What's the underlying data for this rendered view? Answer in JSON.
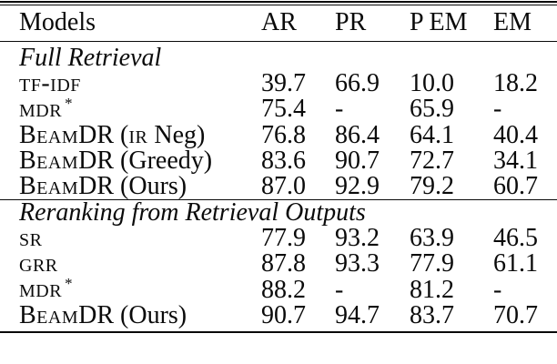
{
  "table": {
    "columns": [
      "Models",
      "AR",
      "PR",
      "P EM",
      "EM"
    ],
    "sections": [
      {
        "header": "Full Retrieval",
        "rows": [
          {
            "model": [
              [
                "tf-idf",
                "sc"
              ]
            ],
            "values": [
              "39.7",
              "66.9",
              "10.0",
              "18.2"
            ]
          },
          {
            "model": [
              [
                "mdr",
                "sc"
              ],
              [
                "*",
                "sup"
              ]
            ],
            "values": [
              "75.4",
              "-",
              "65.9",
              "-"
            ]
          },
          {
            "model": [
              [
                "Beam",
                "sc"
              ],
              [
                "DR (",
                ""
              ],
              [
                "ir",
                "sc"
              ],
              [
                " Neg)",
                ""
              ]
            ],
            "values": [
              "76.8",
              "86.4",
              "64.1",
              "40.4"
            ]
          },
          {
            "model": [
              [
                "Beam",
                "sc"
              ],
              [
                "DR (Greedy)",
                ""
              ]
            ],
            "values": [
              "83.6",
              "90.7",
              "72.7",
              "34.1"
            ]
          },
          {
            "model": [
              [
                "Beam",
                "sc"
              ],
              [
                "DR (Ours)",
                ""
              ]
            ],
            "values": [
              "87.0",
              "92.9",
              "79.2",
              "60.7"
            ]
          }
        ]
      },
      {
        "header": "Reranking from Retrieval Outputs",
        "rows": [
          {
            "model": [
              [
                "sr",
                "sc"
              ]
            ],
            "values": [
              "77.9",
              "93.2",
              "63.9",
              "46.5"
            ]
          },
          {
            "model": [
              [
                "grr",
                "sc"
              ]
            ],
            "values": [
              "87.8",
              "93.3",
              "77.9",
              "61.1"
            ]
          },
          {
            "model": [
              [
                "mdr",
                "sc"
              ],
              [
                "*",
                "sup"
              ]
            ],
            "values": [
              "88.2",
              "-",
              "81.2",
              "-"
            ]
          },
          {
            "model": [
              [
                "Beam",
                "sc"
              ],
              [
                "DR (Ours)",
                ""
              ]
            ],
            "values": [
              "90.7",
              "94.7",
              "83.7",
              "70.7"
            ]
          }
        ]
      }
    ]
  }
}
